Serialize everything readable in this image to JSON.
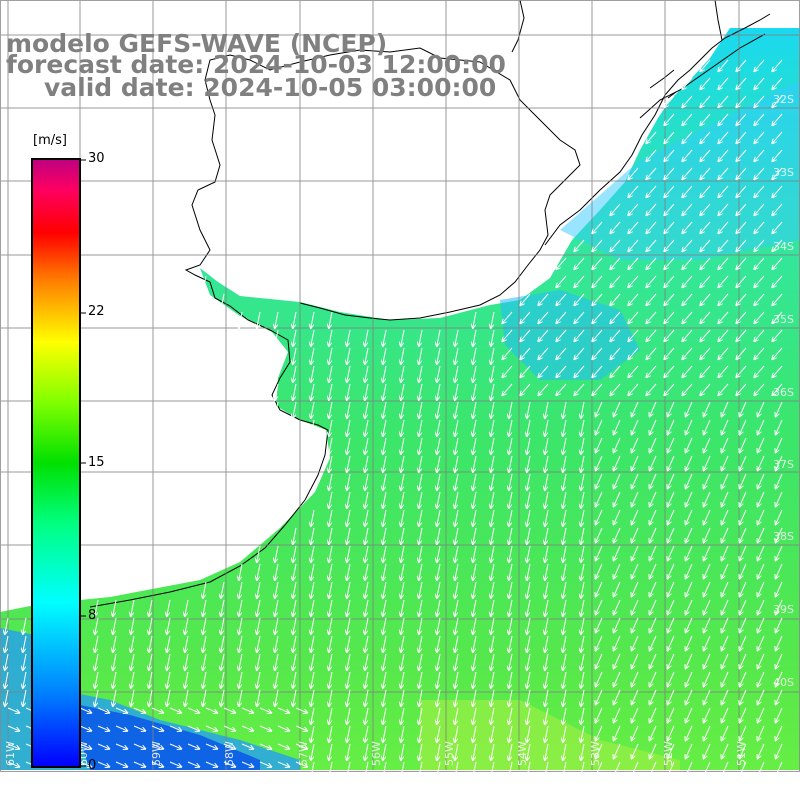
{
  "title": {
    "model": "modelo GEFS-WAVE (NCEP)",
    "forecast_date": "forecast date: 2024-10-03 12:00:00",
    "valid_date": "valid date: 2024-10-05 03:00:00"
  },
  "colorbar": {
    "unit": "[m/s]",
    "ticks": [
      "30",
      "22",
      "15",
      "8",
      "0"
    ],
    "colors": [
      "#0000ff",
      "#0080ff",
      "#00ffff",
      "#00ff80",
      "#00e000",
      "#80ff00",
      "#ffff00",
      "#ff8000",
      "#ff0000",
      "#ff0060",
      "#c00080"
    ]
  },
  "lat_labels": [
    "32S",
    "33S",
    "34S",
    "35S",
    "36S",
    "37S",
    "38S",
    "39S",
    "40S"
  ],
  "lon_labels": [
    "61W",
    "60W",
    "59W",
    "58W",
    "57W",
    "56W",
    "55W",
    "54W",
    "53W",
    "52W",
    "51W"
  ],
  "wind": {
    "dominant_direction": "from NNE (arrows pointing SSW)",
    "ocean_color": "#33dd55",
    "land_color": "#ffffff"
  }
}
